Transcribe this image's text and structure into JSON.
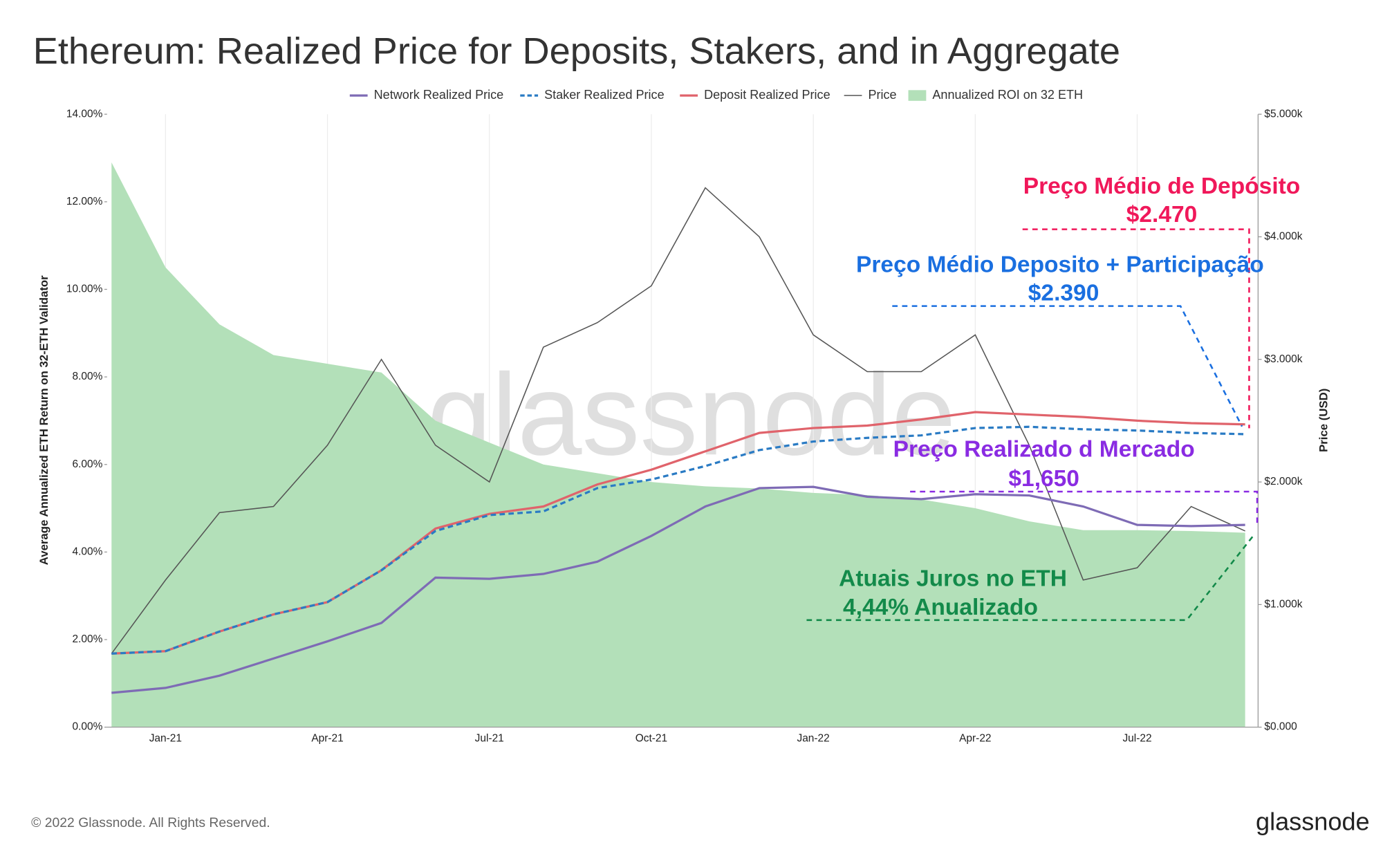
{
  "chart_data": {
    "type": "line",
    "title": "Ethereum: Realized Price for Deposits, Stakers, and in Aggregate",
    "y_label": "Average Annualized ETH Return on 32-ETH Validator",
    "y2_label": "Price (USD)",
    "watermark": "glassnode",
    "footer": "© 2022 Glassnode. All Rights Reserved.",
    "logo": "glassnode",
    "grid": true,
    "categories": [
      null,
      "Jan-21",
      null,
      null,
      "Apr-21",
      null,
      null,
      "Jul-21",
      null,
      null,
      "Oct-21",
      null,
      null,
      "Jan-22",
      null,
      null,
      "Apr-22",
      null,
      null,
      "Jul-22",
      null,
      null
    ],
    "ylim": [
      0,
      14
    ],
    "yticks": [
      {
        "value": 0,
        "label": "0.00%"
      },
      {
        "value": 2,
        "label": "2.00%"
      },
      {
        "value": 4,
        "label": "4.00%"
      },
      {
        "value": 6,
        "label": "6.00%"
      },
      {
        "value": 8,
        "label": "8.00%"
      },
      {
        "value": 10,
        "label": "10.00%"
      },
      {
        "value": 12,
        "label": "12.00%"
      },
      {
        "value": 14,
        "label": "14.00%"
      }
    ],
    "y2lim": [
      0,
      5000
    ],
    "y2ticks": [
      {
        "value": 0,
        "label": "$0.000"
      },
      {
        "value": 1000,
        "label": "$1.000k"
      },
      {
        "value": 2000,
        "label": "$2.000k"
      },
      {
        "value": 3000,
        "label": "$3.000k"
      },
      {
        "value": 4000,
        "label": "$4.000k"
      },
      {
        "value": 5000,
        "label": "$5.000k"
      }
    ],
    "series": [
      {
        "name": "Network Realized Price",
        "color": "#7e6bb5",
        "style": "solid",
        "axis": "y2",
        "values": [
          280,
          320,
          420,
          560,
          700,
          850,
          1220,
          1210,
          1250,
          1350,
          1560,
          1800,
          1950,
          1960,
          1880,
          1860,
          1900,
          1890,
          1800,
          1650,
          1640,
          1650
        ]
      },
      {
        "name": "Staker Realized Price",
        "color": "#2a7bc4",
        "style": "dashed",
        "axis": "y2",
        "values": [
          600,
          620,
          780,
          920,
          1020,
          1280,
          1600,
          1730,
          1760,
          1950,
          2020,
          2130,
          2260,
          2330,
          2360,
          2380,
          2440,
          2450,
          2430,
          2420,
          2400,
          2390
        ]
      },
      {
        "name": "Deposit Realized Price",
        "color": "#e0636b",
        "style": "solid",
        "axis": "y2",
        "values": [
          600,
          620,
          780,
          920,
          1020,
          1280,
          1620,
          1740,
          1800,
          1980,
          2100,
          2250,
          2400,
          2440,
          2460,
          2510,
          2570,
          2550,
          2530,
          2500,
          2480,
          2470
        ]
      },
      {
        "name": "Price",
        "color": "#555555",
        "style": "thin",
        "axis": "y2",
        "values": [
          600,
          1200,
          1750,
          1800,
          2300,
          3000,
          2300,
          2000,
          3100,
          3300,
          3600,
          4400,
          4000,
          3200,
          2900,
          2900,
          3200,
          2300,
          1200,
          1300,
          1800,
          1600
        ]
      },
      {
        "name": "Annualized ROI on 32 ETH",
        "color": "#b3e0b9",
        "style": "area",
        "axis": "y",
        "values": [
          12.9,
          10.5,
          9.2,
          8.5,
          8.3,
          8.1,
          7.0,
          6.5,
          6.0,
          5.8,
          5.6,
          5.5,
          5.45,
          5.35,
          5.3,
          5.2,
          5.0,
          4.7,
          4.5,
          4.5,
          4.48,
          4.44
        ]
      }
    ],
    "annotations": [
      {
        "text": "Preço Médio de Depósito",
        "color": "#f0185a"
      },
      {
        "text": "$2.470",
        "color": "#f0185a"
      },
      {
        "text": "Preço Médio Deposito + Participação",
        "color": "#1a6fe0"
      },
      {
        "text": "$2.390",
        "color": "#1a6fe0"
      },
      {
        "text": "Preço Realizado d Mercado",
        "color": "#8a2be2"
      },
      {
        "text": "$1,650",
        "color": "#8a2be2"
      },
      {
        "text": "Atuais Juros no ETH",
        "color": "#138a4a"
      },
      {
        "text": "4,44% Anualizado",
        "color": "#138a4a"
      }
    ]
  }
}
